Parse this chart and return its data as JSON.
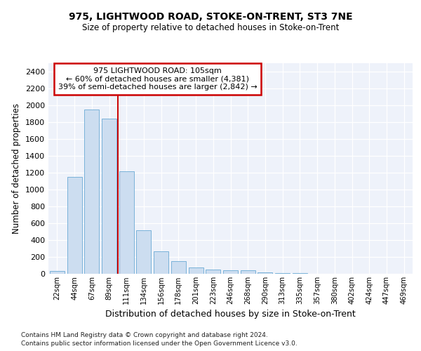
{
  "title1": "975, LIGHTWOOD ROAD, STOKE-ON-TRENT, ST3 7NE",
  "title2": "Size of property relative to detached houses in Stoke-on-Trent",
  "xlabel": "Distribution of detached houses by size in Stoke-on-Trent",
  "ylabel": "Number of detached properties",
  "footnote1": "Contains HM Land Registry data © Crown copyright and database right 2024.",
  "footnote2": "Contains public sector information licensed under the Open Government Licence v3.0.",
  "property_label": "975 LIGHTWOOD ROAD: 105sqm",
  "annotation_line1": "← 60% of detached houses are smaller (4,381)",
  "annotation_line2": "39% of semi-detached houses are larger (2,842) →",
  "bar_color": "#ccddf0",
  "bar_edge_color": "#6aaad4",
  "vline_color": "#cc0000",
  "annotation_box_edge": "#cc0000",
  "categories": [
    "22sqm",
    "44sqm",
    "67sqm",
    "89sqm",
    "111sqm",
    "134sqm",
    "156sqm",
    "178sqm",
    "201sqm",
    "223sqm",
    "246sqm",
    "268sqm",
    "290sqm",
    "313sqm",
    "335sqm",
    "357sqm",
    "380sqm",
    "402sqm",
    "424sqm",
    "447sqm",
    "469sqm"
  ],
  "values": [
    30,
    1150,
    1950,
    1840,
    1220,
    520,
    270,
    150,
    75,
    50,
    40,
    40,
    15,
    8,
    5,
    3,
    3,
    3,
    3,
    3,
    3
  ],
  "ylim": [
    0,
    2500
  ],
  "yticks": [
    0,
    200,
    400,
    600,
    800,
    1000,
    1200,
    1400,
    1600,
    1800,
    2000,
    2200,
    2400
  ],
  "vline_x": 3.5,
  "bg_color": "#eef2fa"
}
